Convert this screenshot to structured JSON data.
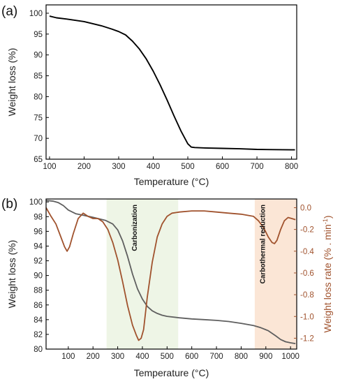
{
  "chart_data": [
    {
      "panel_label": "(a)",
      "type": "line",
      "xlabel": "Temperature (°C)",
      "ylabel": "Weight loss (%)",
      "xlim": [
        90,
        815
      ],
      "ylim": [
        65,
        102
      ],
      "xticks": [
        100,
        200,
        300,
        400,
        500,
        600,
        700,
        800
      ],
      "yticks": [
        65,
        70,
        75,
        80,
        85,
        90,
        95,
        100
      ],
      "series": [
        {
          "color": "#000000",
          "x": [
            100,
            120,
            150,
            200,
            250,
            280,
            300,
            320,
            340,
            360,
            380,
            400,
            420,
            440,
            460,
            480,
            500,
            510,
            520,
            550,
            600,
            650,
            700,
            750,
            800,
            810
          ],
          "y": [
            99.3,
            98.9,
            98.6,
            98.0,
            97.0,
            96.2,
            95.6,
            94.8,
            93.3,
            91.4,
            89.0,
            86.1,
            82.8,
            79.2,
            75.4,
            71.8,
            68.7,
            67.9,
            67.8,
            67.7,
            67.6,
            67.5,
            67.35,
            67.3,
            67.25,
            67.25
          ]
        }
      ]
    },
    {
      "panel_label": "(b)",
      "type": "line",
      "xlabel": "Temperature (°C)",
      "ylabel_left": "Weight loss (%)",
      "ylabel_right": "Weight loss rate (% . min",
      "ylabel_right_sup": "-1",
      "ylabel_right_tail": ")",
      "xlim": [
        10,
        1025
      ],
      "ylim_left": [
        80,
        100.4
      ],
      "ylim_right": [
        -1.3,
        0.08
      ],
      "xticks": [
        100,
        200,
        300,
        400,
        500,
        600,
        700,
        800,
        900,
        1000
      ],
      "yticks_left": [
        80,
        82,
        84,
        86,
        88,
        90,
        92,
        94,
        96,
        98,
        100
      ],
      "yticks_right": [
        0.0,
        -0.2,
        -0.4,
        -0.6,
        -0.8,
        -1.0,
        -1.2
      ],
      "ytick_labels_right": [
        "0.0",
        "-0.2",
        "-0.4",
        "-0.6",
        "-0.8",
        "-1.0",
        "-1.2"
      ],
      "shaded_regions": [
        {
          "label": "Carbonization",
          "x_range": [
            255,
            545
          ],
          "color": "#eef5e6"
        },
        {
          "label": "Carbothermal reduction",
          "x_range": [
            855,
            1025
          ],
          "color": "#fbe6d6"
        }
      ],
      "series": [
        {
          "axis": "left",
          "color": "#5f5f5f",
          "x": [
            10,
            40,
            60,
            80,
            100,
            130,
            160,
            200,
            250,
            280,
            300,
            320,
            340,
            360,
            380,
            400,
            420,
            440,
            460,
            480,
            500,
            550,
            600,
            650,
            700,
            750,
            800,
            850,
            880,
            910,
            940,
            960,
            980,
            1000,
            1020
          ],
          "y": [
            100.2,
            100.1,
            99.9,
            99.5,
            98.9,
            98.4,
            98.2,
            97.9,
            97.5,
            97.0,
            96.2,
            94.7,
            92.6,
            90.2,
            88.2,
            86.8,
            85.8,
            85.2,
            84.85,
            84.6,
            84.45,
            84.25,
            84.1,
            84.0,
            83.9,
            83.75,
            83.5,
            83.2,
            82.9,
            82.5,
            81.8,
            81.3,
            81.0,
            80.85,
            80.75
          ]
        },
        {
          "axis": "right",
          "color": "#a0522d",
          "x": [
            10,
            30,
            50,
            70,
            85,
            95,
            105,
            120,
            140,
            160,
            180,
            200,
            220,
            240,
            260,
            280,
            300,
            320,
            340,
            360,
            375,
            385,
            395,
            405,
            420,
            440,
            460,
            480,
            500,
            520,
            550,
            600,
            650,
            700,
            750,
            800,
            850,
            870,
            890,
            910,
            925,
            935,
            945,
            960,
            975,
            990,
            1005,
            1020
          ],
          "y": [
            0.0,
            -0.08,
            -0.15,
            -0.27,
            -0.36,
            -0.4,
            -0.36,
            -0.24,
            -0.1,
            -0.05,
            -0.08,
            -0.1,
            -0.1,
            -0.13,
            -0.2,
            -0.32,
            -0.48,
            -0.68,
            -0.9,
            -1.08,
            -1.17,
            -1.22,
            -1.2,
            -1.12,
            -0.82,
            -0.5,
            -0.27,
            -0.15,
            -0.08,
            -0.05,
            -0.04,
            -0.03,
            -0.03,
            -0.04,
            -0.05,
            -0.06,
            -0.08,
            -0.12,
            -0.18,
            -0.27,
            -0.32,
            -0.33,
            -0.3,
            -0.2,
            -0.12,
            -0.09,
            -0.1,
            -0.11
          ]
        }
      ]
    }
  ],
  "annotations": [
    "Carbonization",
    "Carbothermal reduction"
  ]
}
